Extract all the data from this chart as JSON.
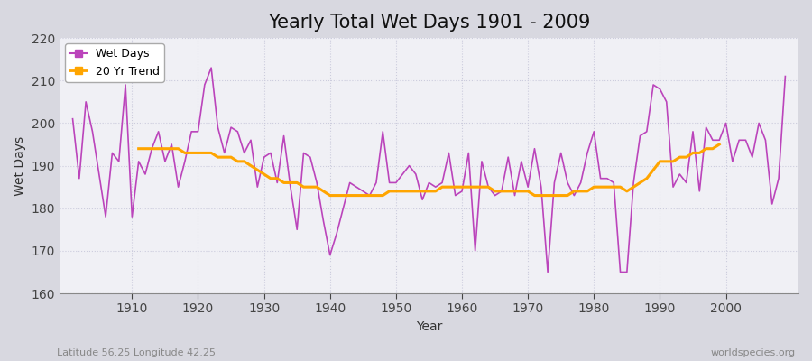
{
  "title": "Yearly Total Wet Days 1901 - 2009",
  "xlabel": "Year",
  "ylabel": "Wet Days",
  "footnote_left": "Latitude 56.25 Longitude 42.25",
  "footnote_right": "worldspecies.org",
  "ylim": [
    160,
    220
  ],
  "yticks": [
    160,
    170,
    180,
    190,
    200,
    210,
    220
  ],
  "plot_bg_color": "#f0f0f5",
  "fig_bg_color": "#d8d8e0",
  "line_color": "#bb44bb",
  "trend_color": "#ffa500",
  "years": [
    1901,
    1902,
    1903,
    1904,
    1905,
    1906,
    1907,
    1908,
    1909,
    1910,
    1911,
    1912,
    1913,
    1914,
    1915,
    1916,
    1917,
    1918,
    1919,
    1920,
    1921,
    1922,
    1923,
    1924,
    1925,
    1926,
    1927,
    1928,
    1929,
    1930,
    1931,
    1932,
    1933,
    1934,
    1935,
    1936,
    1937,
    1938,
    1939,
    1940,
    1941,
    1942,
    1943,
    1944,
    1945,
    1946,
    1947,
    1948,
    1949,
    1950,
    1951,
    1952,
    1953,
    1954,
    1955,
    1956,
    1957,
    1958,
    1959,
    1960,
    1961,
    1962,
    1963,
    1964,
    1965,
    1966,
    1967,
    1968,
    1969,
    1970,
    1971,
    1972,
    1973,
    1974,
    1975,
    1976,
    1977,
    1978,
    1979,
    1980,
    1981,
    1982,
    1983,
    1984,
    1985,
    1986,
    1987,
    1988,
    1989,
    1990,
    1991,
    1992,
    1993,
    1994,
    1995,
    1996,
    1997,
    1998,
    1999,
    2000,
    2001,
    2002,
    2003,
    2004,
    2005,
    2006,
    2007,
    2008,
    2009
  ],
  "wet_days": [
    201,
    187,
    205,
    198,
    188,
    178,
    193,
    191,
    209,
    178,
    191,
    188,
    194,
    198,
    191,
    195,
    185,
    191,
    198,
    198,
    209,
    213,
    199,
    193,
    199,
    198,
    193,
    196,
    185,
    192,
    193,
    186,
    197,
    185,
    175,
    193,
    192,
    186,
    177,
    169,
    174,
    180,
    186,
    185,
    184,
    183,
    186,
    198,
    186,
    186,
    188,
    190,
    188,
    182,
    186,
    185,
    186,
    193,
    183,
    184,
    193,
    170,
    191,
    185,
    183,
    184,
    192,
    183,
    191,
    185,
    194,
    185,
    165,
    186,
    193,
    186,
    183,
    186,
    193,
    198,
    187,
    187,
    186,
    165,
    165,
    186,
    197,
    198,
    209,
    208,
    205,
    185,
    188,
    186,
    198,
    184,
    199,
    196,
    196,
    200,
    191,
    196,
    196,
    192,
    200,
    196,
    181,
    187,
    211
  ],
  "trend": [
    null,
    null,
    null,
    null,
    null,
    null,
    null,
    null,
    null,
    null,
    194,
    194,
    194,
    194,
    194,
    194,
    194,
    193,
    193,
    193,
    193,
    193,
    192,
    192,
    192,
    191,
    191,
    190,
    189,
    188,
    187,
    187,
    186,
    186,
    186,
    185,
    185,
    185,
    184,
    183,
    183,
    183,
    183,
    183,
    183,
    183,
    183,
    183,
    184,
    184,
    184,
    184,
    184,
    184,
    184,
    184,
    185,
    185,
    185,
    185,
    185,
    185,
    185,
    185,
    184,
    184,
    184,
    184,
    184,
    184,
    183,
    183,
    183,
    183,
    183,
    183,
    184,
    184,
    184,
    185,
    185,
    185,
    185,
    185,
    184,
    185,
    186,
    187,
    189,
    191,
    191,
    191,
    192,
    192,
    193,
    193,
    194,
    194,
    195
  ]
}
